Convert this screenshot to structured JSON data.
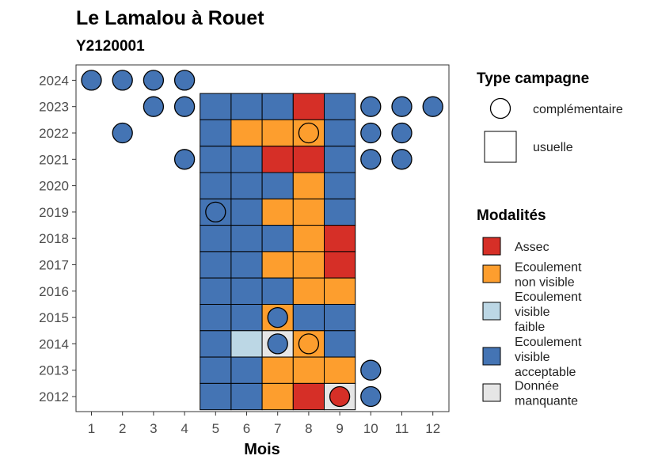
{
  "chart_data": {
    "type": "heatmap",
    "title": "Le Lamalou à Rouet",
    "subtitle": "Y2120001",
    "xlabel": "Mois",
    "ylabel": "",
    "x": [
      1,
      2,
      3,
      4,
      5,
      6,
      7,
      8,
      9,
      10,
      11,
      12
    ],
    "y": [
      2012,
      2013,
      2014,
      2015,
      2016,
      2017,
      2018,
      2019,
      2020,
      2021,
      2022,
      2023,
      2024
    ],
    "grid": false,
    "legend_placement": "right",
    "modalites": [
      {
        "key": "assec",
        "label_lines": [
          "Assec"
        ],
        "color": "#d62f27"
      },
      {
        "key": "nonvisible",
        "label_lines": [
          "Ecoulement",
          "non visible"
        ],
        "color": "#fd9e2e"
      },
      {
        "key": "faible",
        "label_lines": [
          "Ecoulement",
          "visible",
          "faible"
        ],
        "color": "#bcd7e5"
      },
      {
        "key": "acceptable",
        "label_lines": [
          "Ecoulement",
          "visible",
          "acceptable"
        ],
        "color": "#4474b4"
      },
      {
        "key": "manquante",
        "label_lines": [
          "Donnée",
          "manquante"
        ],
        "color": "#e6e6e6"
      }
    ],
    "type_campagne": {
      "title": "Type campagne",
      "items": [
        {
          "key": "complementaire",
          "label": "complémentaire",
          "shape": "circle"
        },
        {
          "key": "usuelle",
          "label": "usuelle",
          "shape": "square"
        }
      ]
    },
    "legend_title_modalites": "Modalités",
    "usuelle": [
      {
        "year": 2023,
        "months": {
          "5": "acceptable",
          "6": "acceptable",
          "7": "acceptable",
          "8": "assec",
          "9": "acceptable"
        }
      },
      {
        "year": 2022,
        "months": {
          "5": "acceptable",
          "6": "nonvisible",
          "7": "nonvisible",
          "8": "nonvisible",
          "9": "acceptable"
        }
      },
      {
        "year": 2021,
        "months": {
          "5": "acceptable",
          "6": "acceptable",
          "7": "assec",
          "8": "assec",
          "9": "acceptable"
        }
      },
      {
        "year": 2020,
        "months": {
          "5": "acceptable",
          "6": "acceptable",
          "7": "acceptable",
          "8": "nonvisible",
          "9": "acceptable"
        }
      },
      {
        "year": 2019,
        "months": {
          "5": "acceptable",
          "6": "acceptable",
          "7": "nonvisible",
          "8": "nonvisible",
          "9": "acceptable"
        }
      },
      {
        "year": 2018,
        "months": {
          "5": "acceptable",
          "6": "acceptable",
          "7": "acceptable",
          "8": "nonvisible",
          "9": "assec"
        }
      },
      {
        "year": 2017,
        "months": {
          "5": "acceptable",
          "6": "acceptable",
          "7": "nonvisible",
          "8": "nonvisible",
          "9": "assec"
        }
      },
      {
        "year": 2016,
        "months": {
          "5": "acceptable",
          "6": "acceptable",
          "7": "acceptable",
          "8": "nonvisible",
          "9": "nonvisible"
        }
      },
      {
        "year": 2015,
        "months": {
          "5": "acceptable",
          "6": "acceptable",
          "7": "nonvisible",
          "8": "acceptable",
          "9": "acceptable"
        }
      },
      {
        "year": 2014,
        "months": {
          "5": "acceptable",
          "6": "faible",
          "7": "manquante",
          "8": "nonvisible",
          "9": "acceptable"
        }
      },
      {
        "year": 2013,
        "months": {
          "5": "acceptable",
          "6": "acceptable",
          "7": "nonvisible",
          "8": "nonvisible",
          "9": "nonvisible"
        }
      },
      {
        "year": 2012,
        "months": {
          "5": "acceptable",
          "6": "acceptable",
          "7": "nonvisible",
          "8": "assec",
          "9": "manquante"
        }
      }
    ],
    "complementaire": [
      {
        "year": 2024,
        "month": 1,
        "value": "acceptable"
      },
      {
        "year": 2024,
        "month": 2,
        "value": "acceptable"
      },
      {
        "year": 2024,
        "month": 3,
        "value": "acceptable"
      },
      {
        "year": 2024,
        "month": 4,
        "value": "acceptable"
      },
      {
        "year": 2023,
        "month": 3,
        "value": "acceptable"
      },
      {
        "year": 2023,
        "month": 4,
        "value": "acceptable"
      },
      {
        "year": 2023,
        "month": 10,
        "value": "acceptable"
      },
      {
        "year": 2023,
        "month": 11,
        "value": "acceptable"
      },
      {
        "year": 2023,
        "month": 12,
        "value": "acceptable"
      },
      {
        "year": 2022,
        "month": 2,
        "value": "acceptable"
      },
      {
        "year": 2022,
        "month": 8,
        "value": "nonvisible"
      },
      {
        "year": 2022,
        "month": 10,
        "value": "acceptable"
      },
      {
        "year": 2022,
        "month": 11,
        "value": "acceptable"
      },
      {
        "year": 2021,
        "month": 4,
        "value": "acceptable"
      },
      {
        "year": 2021,
        "month": 10,
        "value": "acceptable"
      },
      {
        "year": 2021,
        "month": 11,
        "value": "acceptable"
      },
      {
        "year": 2019,
        "month": 5,
        "value": "acceptable"
      },
      {
        "year": 2015,
        "month": 7,
        "value": "acceptable"
      },
      {
        "year": 2014,
        "month": 7,
        "value": "acceptable"
      },
      {
        "year": 2014,
        "month": 8,
        "value": "nonvisible"
      },
      {
        "year": 2013,
        "month": 10,
        "value": "acceptable"
      },
      {
        "year": 2012,
        "month": 9,
        "value": "assec"
      },
      {
        "year": 2012,
        "month": 10,
        "value": "acceptable"
      }
    ]
  }
}
